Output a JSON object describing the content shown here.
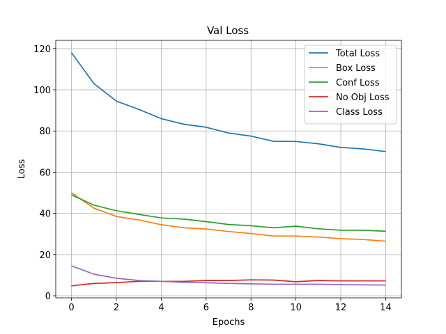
{
  "chart_data": {
    "type": "line",
    "title": "Val Loss",
    "xlabel": "Epochs",
    "ylabel": "Loss",
    "xlim": [
      -0.7,
      14.7
    ],
    "ylim": [
      -1,
      124
    ],
    "xticks": [
      0,
      2,
      4,
      6,
      8,
      10,
      12,
      14
    ],
    "yticks": [
      0,
      20,
      40,
      60,
      80,
      100,
      120
    ],
    "grid": true,
    "legend": "top-right",
    "x": [
      0,
      1,
      2,
      3,
      4,
      5,
      6,
      7,
      8,
      9,
      10,
      11,
      12,
      13,
      14
    ],
    "series": [
      {
        "name": "Total Loss",
        "color": "#1f77b4",
        "values": [
          118,
          103,
          94.5,
          90.5,
          86,
          83.3,
          81.8,
          79,
          77.5,
          75,
          74.9,
          73.8,
          72,
          71.3,
          70
        ]
      },
      {
        "name": "Box Loss",
        "color": "#ff7f0e",
        "values": [
          50,
          42.5,
          38.5,
          36.8,
          34.5,
          33,
          32.4,
          31.2,
          30.2,
          29,
          29,
          28.5,
          27.7,
          27.3,
          26.5
        ]
      },
      {
        "name": "Conf Loss",
        "color": "#2ca02c",
        "values": [
          49,
          44,
          41.3,
          39.5,
          37.8,
          37.2,
          36,
          34.6,
          34,
          33,
          33.8,
          32.5,
          31.8,
          31.8,
          31.3
        ]
      },
      {
        "name": "No Obj Loss",
        "color": "#d62728",
        "values": [
          4.8,
          6,
          6.4,
          7,
          7,
          7,
          7.4,
          7.4,
          7.7,
          7.6,
          6.8,
          7.4,
          7.2,
          7.2,
          7.2
        ]
      },
      {
        "name": "Class Loss",
        "color": "#9467bd",
        "values": [
          14.5,
          10.5,
          8.5,
          7.4,
          7,
          6.5,
          6.3,
          6,
          5.8,
          5.6,
          5.6,
          5.6,
          5.4,
          5.3,
          5.2
        ]
      }
    ]
  }
}
